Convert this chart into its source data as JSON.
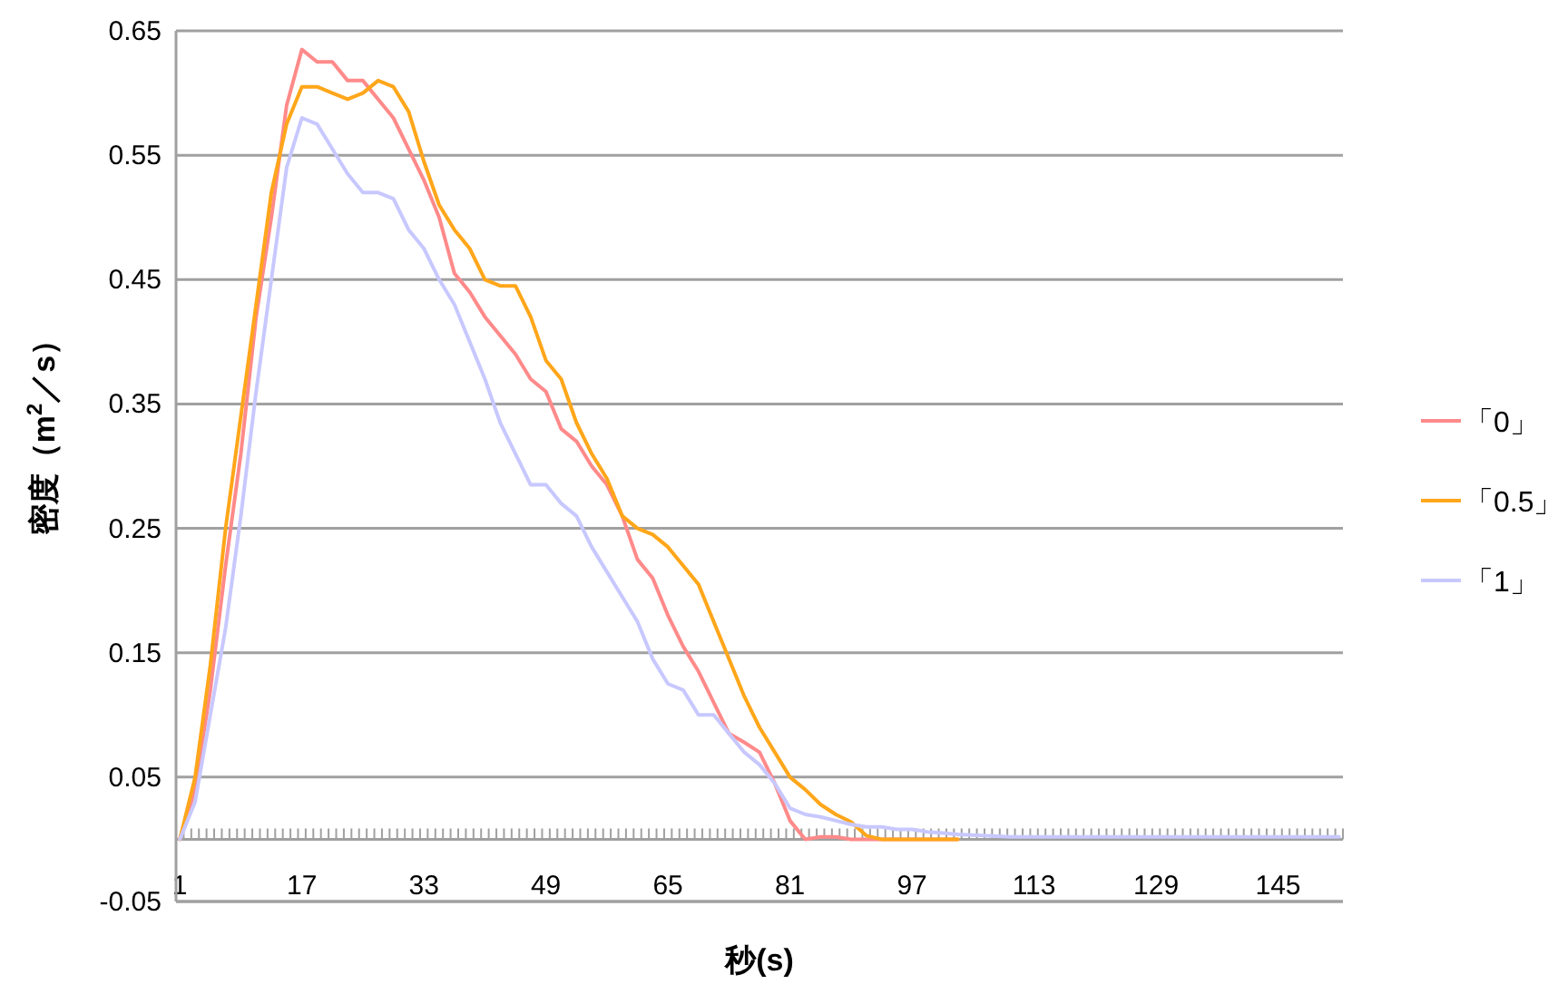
{
  "chart_data": {
    "type": "line",
    "xlabel": "秒(s)",
    "ylabel": "密度（m$^{2}$／s）",
    "xlim": [
      0.5,
      153.5
    ],
    "xticks": [
      1,
      17,
      33,
      49,
      65,
      81,
      97,
      113,
      129,
      145
    ],
    "ylim": [
      -0.05,
      0.65
    ],
    "yticks": [
      -0.05,
      0.05,
      0.15,
      0.25,
      0.35,
      0.45,
      0.55,
      0.65
    ],
    "grid": "y",
    "legend": "right",
    "line_style": "solid",
    "series": [
      {
        "name": "「0」",
        "color": "#ff8a8a",
        "x": [
          1,
          3,
          5,
          7,
          9,
          11,
          13,
          15,
          17,
          19,
          21,
          23,
          25,
          27,
          29,
          31,
          33,
          35,
          37,
          39,
          41,
          43,
          45,
          47,
          49,
          51,
          53,
          55,
          57,
          59,
          61,
          63,
          65,
          67,
          69,
          71,
          73,
          75,
          77,
          79,
          81,
          83,
          85,
          87,
          89,
          91,
          93,
          95,
          97,
          99,
          101,
          103
        ],
        "values": [
          0,
          0.04,
          0.12,
          0.22,
          0.31,
          0.42,
          0.5,
          0.59,
          0.635,
          0.625,
          0.625,
          0.61,
          0.61,
          0.595,
          0.58,
          0.555,
          0.53,
          0.5,
          0.455,
          0.44,
          0.42,
          0.405,
          0.39,
          0.37,
          0.36,
          0.33,
          0.32,
          0.3,
          0.285,
          0.26,
          0.225,
          0.21,
          0.18,
          0.155,
          0.135,
          0.11,
          0.085,
          0.078,
          0.07,
          0.045,
          0.015,
          0,
          0.002,
          0.002,
          0,
          0,
          0,
          0,
          0,
          0,
          0,
          0
        ]
      },
      {
        "name": "「0.5」",
        "color": "#ffa61a",
        "x": [
          1,
          3,
          5,
          7,
          9,
          11,
          13,
          15,
          17,
          19,
          21,
          23,
          25,
          27,
          29,
          31,
          33,
          35,
          37,
          39,
          41,
          43,
          45,
          47,
          49,
          51,
          53,
          55,
          57,
          59,
          61,
          63,
          65,
          67,
          69,
          71,
          73,
          75,
          77,
          79,
          81,
          83,
          85,
          87,
          89,
          91,
          93,
          95,
          97,
          99,
          101,
          103
        ],
        "values": [
          0,
          0.05,
          0.14,
          0.25,
          0.34,
          0.43,
          0.52,
          0.575,
          0.605,
          0.605,
          0.6,
          0.595,
          0.6,
          0.61,
          0.605,
          0.585,
          0.545,
          0.51,
          0.49,
          0.475,
          0.45,
          0.445,
          0.445,
          0.42,
          0.385,
          0.37,
          0.335,
          0.31,
          0.29,
          0.26,
          0.25,
          0.245,
          0.235,
          0.22,
          0.205,
          0.175,
          0.145,
          0.115,
          0.09,
          0.07,
          0.05,
          0.04,
          0.028,
          0.02,
          0.014,
          0.003,
          0,
          0,
          0,
          0,
          0,
          0
        ]
      },
      {
        "name": "「1」",
        "color": "#c8c8ff",
        "x": [
          1,
          3,
          5,
          7,
          9,
          11,
          13,
          15,
          17,
          19,
          21,
          23,
          25,
          27,
          29,
          31,
          33,
          35,
          37,
          39,
          41,
          43,
          45,
          47,
          49,
          51,
          53,
          55,
          57,
          59,
          61,
          63,
          65,
          67,
          69,
          71,
          73,
          75,
          77,
          79,
          81,
          83,
          85,
          87,
          89,
          91,
          93,
          95,
          97,
          99,
          101,
          103,
          110,
          120,
          130,
          140,
          150,
          153
        ],
        "values": [
          0,
          0.03,
          0.1,
          0.17,
          0.26,
          0.36,
          0.45,
          0.54,
          0.58,
          0.575,
          0.555,
          0.535,
          0.52,
          0.52,
          0.515,
          0.49,
          0.475,
          0.45,
          0.43,
          0.4,
          0.37,
          0.335,
          0.31,
          0.285,
          0.285,
          0.27,
          0.26,
          0.235,
          0.215,
          0.195,
          0.175,
          0.145,
          0.125,
          0.12,
          0.1,
          0.1,
          0.085,
          0.07,
          0.06,
          0.045,
          0.025,
          0.02,
          0.018,
          0.015,
          0.012,
          0.01,
          0.01,
          0.008,
          0.008,
          0.006,
          0.005,
          0.004,
          0.002,
          0.002,
          0.002,
          0.002,
          0.002,
          0.002
        ]
      }
    ]
  }
}
